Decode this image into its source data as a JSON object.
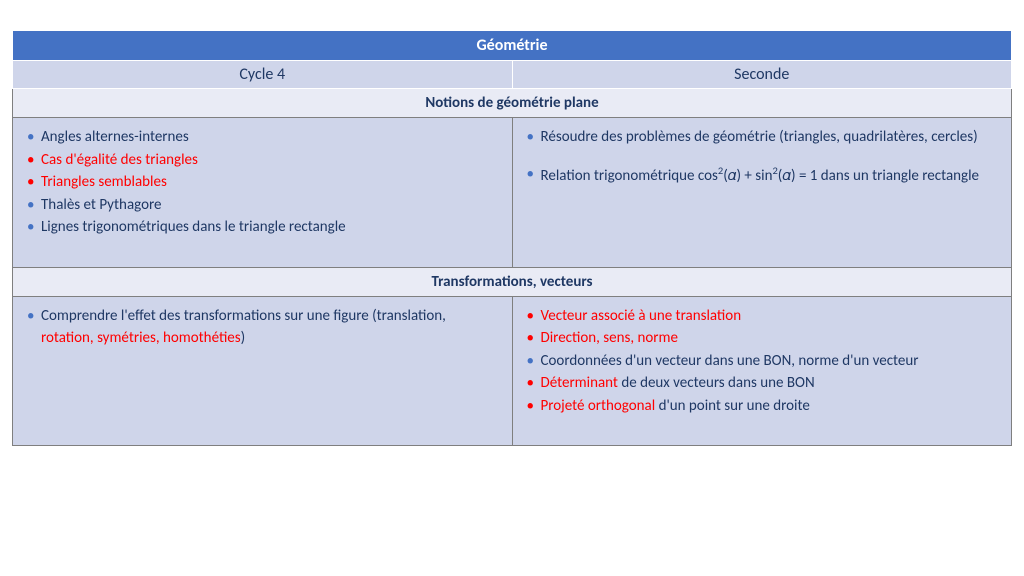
{
  "colors": {
    "header_bg": "#4472c4",
    "header_fg": "#ffffff",
    "subhead_bg": "#cfd5ea",
    "section_bg": "#e9ebf5",
    "cell_bg": "#cfd5ea",
    "text_main": "#1f3864",
    "text_red": "#ff0000",
    "bullet_blue": "#4472c4",
    "bullet_red": "#ff0000",
    "border": "#7f7f7f"
  },
  "title": "Géométrie",
  "cols": {
    "left": "Cycle 4",
    "right": "Seconde"
  },
  "sections": [
    {
      "heading": "Notions de géométrie plane",
      "left": [
        {
          "bullet": "blue",
          "parts": [
            {
              "t": "Angles alternes-internes",
              "c": "blue"
            }
          ]
        },
        {
          "bullet": "red",
          "parts": [
            {
              "t": "Cas d'égalité des triangles",
              "c": "red"
            }
          ]
        },
        {
          "bullet": "red",
          "parts": [
            {
              "t": "Triangles semblables",
              "c": "red"
            }
          ]
        },
        {
          "bullet": "blue",
          "parts": [
            {
              "t": "Thalès et Pythagore",
              "c": "blue"
            }
          ]
        },
        {
          "bullet": "blue",
          "parts": [
            {
              "t": "Lignes trigonométriques dans le triangle rectangle",
              "c": "blue"
            }
          ]
        }
      ],
      "right": [
        {
          "bullet": "blue",
          "parts": [
            {
              "t": "Résoudre des problèmes de géométrie (triangles, quadrilatères, cercles)",
              "c": "blue"
            }
          ]
        },
        {
          "gap": true
        },
        {
          "bullet": "blue",
          "html": true,
          "parts": [
            {
              "t": "Relation trigonométrique cos<sup>2</sup>(𝛼) + sin<sup>2</sup>(𝛼) = 1 dans un triangle rectangle",
              "c": "blue"
            }
          ]
        }
      ]
    },
    {
      "heading": "Transformations, vecteurs",
      "left": [
        {
          "bullet": "blue",
          "parts": [
            {
              "t": "Comprendre l'effet des transformations sur une figure (translation, ",
              "c": "blue"
            },
            {
              "t": "rotation, symétries, homothéties",
              "c": "red"
            },
            {
              "t": ")",
              "c": "blue"
            }
          ]
        }
      ],
      "right": [
        {
          "bullet": "red",
          "parts": [
            {
              "t": "Vecteur associé à une translation",
              "c": "red"
            }
          ]
        },
        {
          "bullet": "red",
          "parts": [
            {
              "t": "Direction, sens, norme",
              "c": "red"
            }
          ]
        },
        {
          "bullet": "blue",
          "parts": [
            {
              "t": "Coordonnées d'un vecteur dans une BON, norme d'un vecteur",
              "c": "blue"
            }
          ]
        },
        {
          "bullet": "red",
          "parts": [
            {
              "t": "Déterminant",
              "c": "red"
            },
            {
              "t": " de deux vecteurs dans une BON",
              "c": "blue"
            }
          ]
        },
        {
          "bullet": "red",
          "parts": [
            {
              "t": "Projeté orthogonal",
              "c": "red"
            },
            {
              "t": " d'un point sur une droite",
              "c": "blue"
            }
          ]
        }
      ]
    }
  ]
}
